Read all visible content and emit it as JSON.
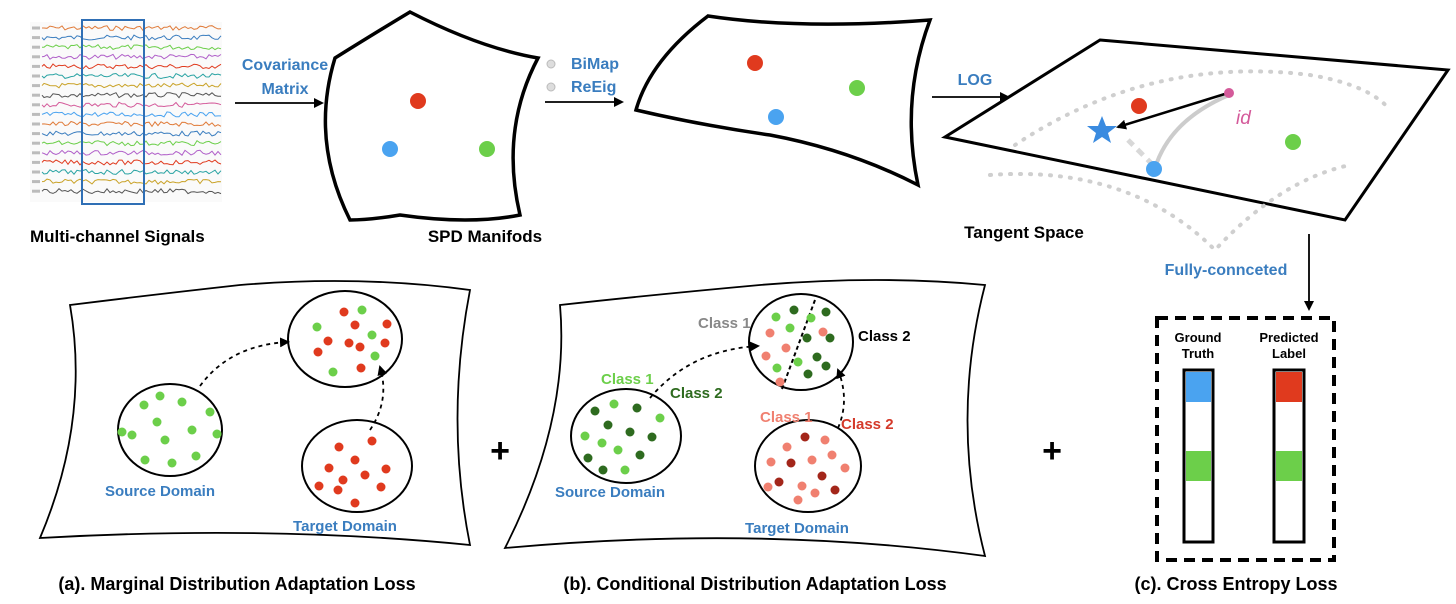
{
  "top": {
    "signals_caption": "Multi-channel Signals",
    "covariance_label_line1": "Covariance",
    "covariance_label_line2": "Matrix",
    "spd_caption": "SPD Manifods",
    "bimap_label": "BiMap",
    "reeig_label": "ReEig",
    "log_label": "LOG",
    "tangent_caption": "Tangent Space",
    "id_label": "id",
    "fc_label": "Fully-connceted"
  },
  "panel_a": {
    "source_label": "Source Domain",
    "target_label": "Target Domain",
    "caption": "(a). Marginal Distribution Adaptation Loss"
  },
  "panel_b": {
    "source_class1": "Class 1",
    "source_class2": "Class 2",
    "target_class1": "Class 1",
    "target_class2": "Class 2",
    "merged_class1": "Class 1",
    "merged_class2": "Class 2",
    "source_label": "Source Domain",
    "target_label": "Target Domain",
    "caption": "(b). Conditional Distribution Adaptation Loss"
  },
  "panel_c": {
    "ground_truth_line1": "Ground",
    "ground_truth_line2": "Truth",
    "predicted_line1": "Predicted",
    "predicted_line2": "Label",
    "caption": "(c). Cross Entropy Loss"
  },
  "plus_sign": "+",
  "colors": {
    "accent_blue": "#3a7dbf",
    "red": "#e03a1e",
    "green": "#6ccf4a",
    "blue_dot": "#4aa3f0",
    "dark_green": "#2e6b1f",
    "salmon": "#f08070",
    "dark_red": "#a3261a",
    "pink": "#d45a9a",
    "class2_red": "#d43a2a"
  }
}
